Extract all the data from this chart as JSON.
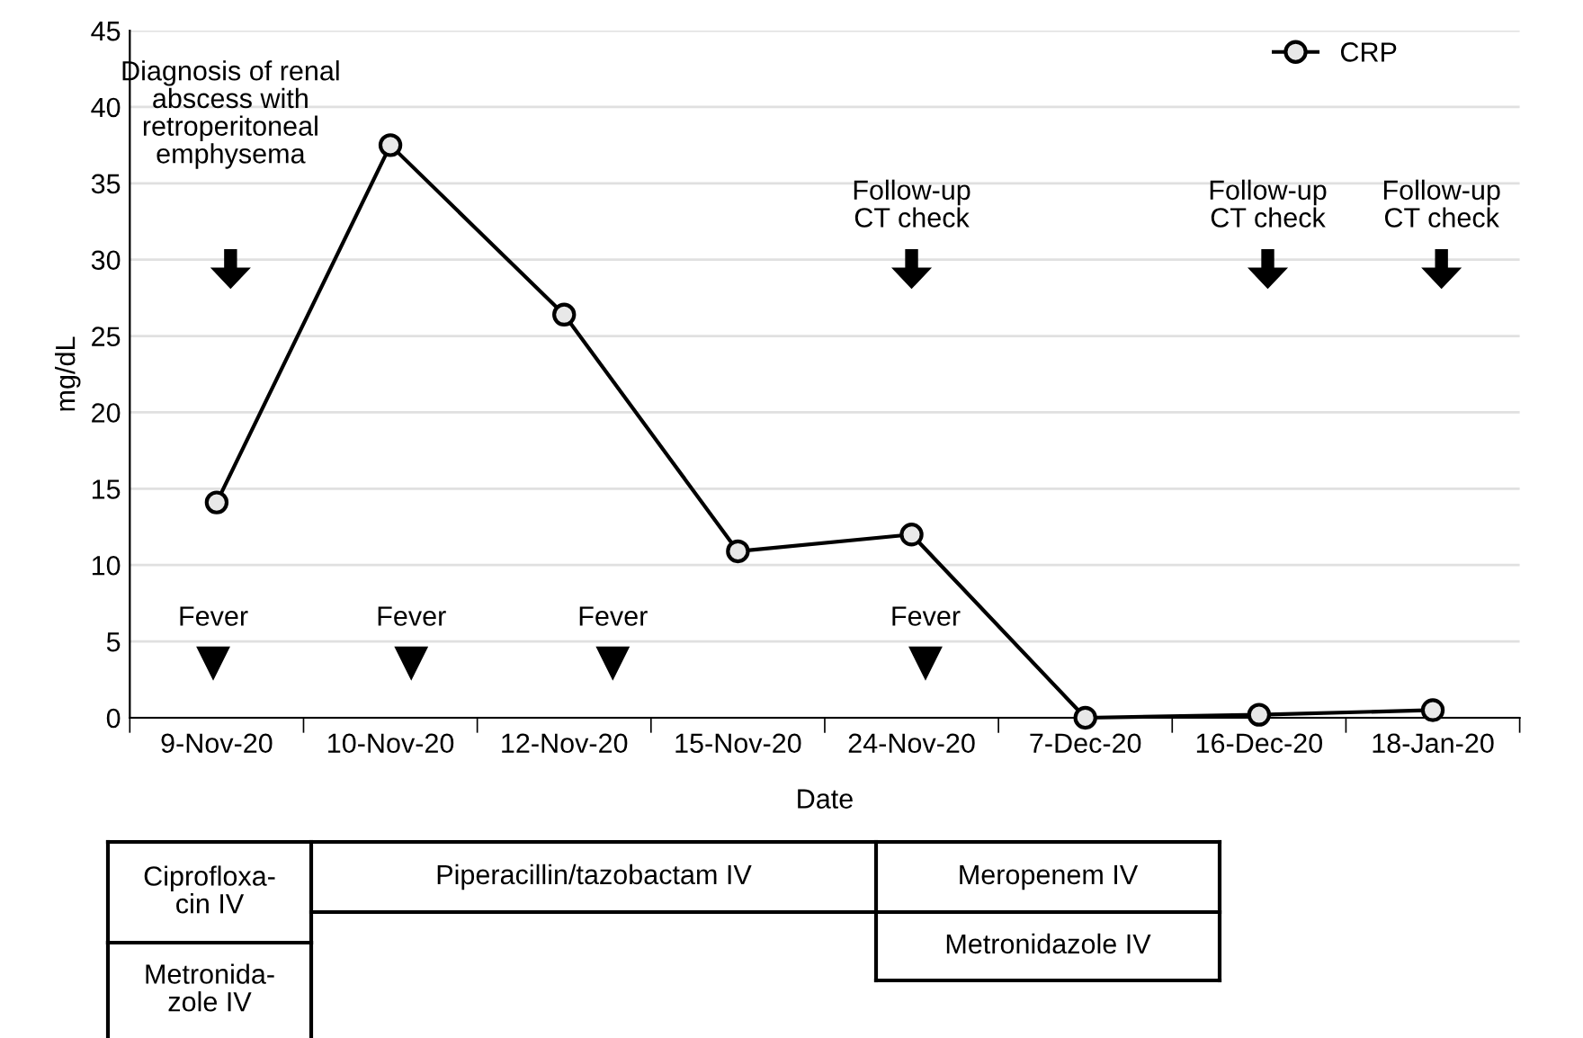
{
  "chart_data": {
    "type": "line",
    "xlabel": "Date",
    "ylabel": "mg/dL",
    "categories": [
      "9-Nov-20",
      "10-Nov-20",
      "12-Nov-20",
      "15-Nov-20",
      "24-Nov-20",
      "7-Dec-20",
      "16-Dec-20",
      "18-Jan-20"
    ],
    "series": [
      {
        "name": "CRP",
        "color": "#000000",
        "values": [
          14.1,
          37.5,
          26.4,
          10.9,
          12.0,
          0,
          0.2,
          0.5
        ]
      }
    ],
    "ylim": [
      0,
      45
    ],
    "yticks": [
      0,
      5,
      10,
      15,
      20,
      25,
      30,
      35,
      40,
      45
    ],
    "grid": "y",
    "legend": "top right",
    "marker": "circle",
    "line_style": "solid",
    "annotations": [
      "Diagnosis of renal\nabscess with\nretroperitoneal\nemphysema",
      "Follow-up\nCT check",
      "Follow-up\nCT check",
      "Follow-up\nCT check",
      "Fever",
      "Fever",
      "Fever",
      "Fever",
      "Ciprofloxa-\ncin IV",
      "Metronida-\nzole IV",
      "Piperacillin/tazobactam IV",
      "Meropenem IV",
      "Metronidazole IV"
    ]
  }
}
